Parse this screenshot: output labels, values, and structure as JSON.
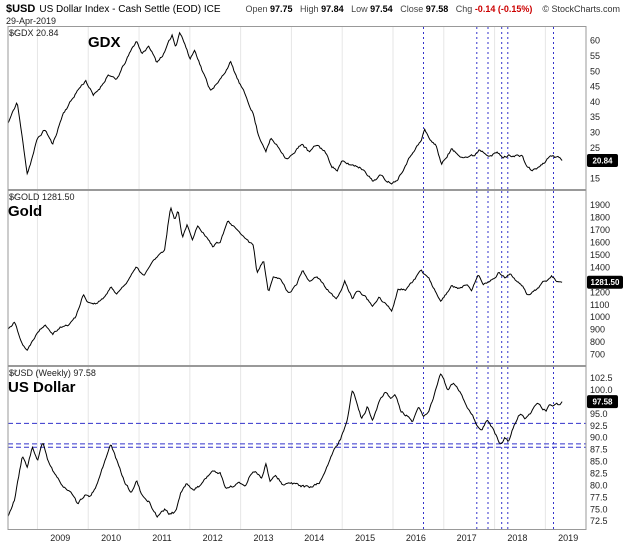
{
  "header": {
    "symbol": "$USD",
    "title": "US Dollar Index - Cash Settle (EOD) ICE",
    "date": "29-Apr-2019",
    "ohlc": [
      {
        "label": "Open",
        "value": "97.75"
      },
      {
        "label": "High",
        "value": "97.84"
      },
      {
        "label": "Low",
        "value": "97.54"
      },
      {
        "label": "Close",
        "value": "97.58"
      }
    ],
    "chg_label": "Chg",
    "chg_value": "-0.14 (-0.15%)",
    "copyright": "© StockCharts.com"
  },
  "chart_data": {
    "type": "line",
    "x_axis": {
      "years": [
        2009,
        2010,
        2011,
        2012,
        2013,
        2014,
        2015,
        2016,
        2017,
        2018,
        2019
      ],
      "domain": [
        2008.42,
        2019.8
      ]
    },
    "annotations": {
      "vlines": [
        2016.6,
        2017.65,
        2017.87,
        2018.14,
        2018.26,
        2019.16
      ],
      "vline_color": "#3333cc",
      "hline_color": "#3333cc"
    },
    "panels": [
      {
        "id": "GDX",
        "legend": "$GDX 20.84",
        "big_label": "GDX",
        "last_label": "20.84",
        "last_value": 20.84,
        "ylim": [
          12.5,
          63.5
        ],
        "ticks": [
          "60",
          "55",
          "50",
          "45",
          "40",
          "35",
          "30",
          "25",
          "20",
          "15"
        ],
        "series": [
          [
            2008.42,
            33
          ],
          [
            2008.6,
            40
          ],
          [
            2008.8,
            16.5
          ],
          [
            2008.9,
            22
          ],
          [
            2009.0,
            28
          ],
          [
            2009.15,
            31
          ],
          [
            2009.3,
            26
          ],
          [
            2009.5,
            36
          ],
          [
            2009.65,
            40
          ],
          [
            2009.8,
            44
          ],
          [
            2009.95,
            47
          ],
          [
            2010.1,
            42
          ],
          [
            2010.25,
            45
          ],
          [
            2010.4,
            49
          ],
          [
            2010.55,
            47
          ],
          [
            2010.7,
            52
          ],
          [
            2010.85,
            57
          ],
          [
            2010.95,
            60
          ],
          [
            2011.05,
            56
          ],
          [
            2011.2,
            58
          ],
          [
            2011.35,
            53
          ],
          [
            2011.5,
            56
          ],
          [
            2011.65,
            62
          ],
          [
            2011.72,
            58
          ],
          [
            2011.8,
            63
          ],
          [
            2011.9,
            59
          ],
          [
            2012.0,
            54
          ],
          [
            2012.1,
            57
          ],
          [
            2012.25,
            50
          ],
          [
            2012.4,
            44
          ],
          [
            2012.55,
            46
          ],
          [
            2012.7,
            50
          ],
          [
            2012.8,
            53
          ],
          [
            2012.95,
            47
          ],
          [
            2013.1,
            42
          ],
          [
            2013.25,
            36
          ],
          [
            2013.35,
            29
          ],
          [
            2013.5,
            24
          ],
          [
            2013.6,
            28
          ],
          [
            2013.75,
            25
          ],
          [
            2013.9,
            21.5
          ],
          [
            2014.05,
            23
          ],
          [
            2014.2,
            26.5
          ],
          [
            2014.35,
            23.5
          ],
          [
            2014.5,
            26
          ],
          [
            2014.65,
            24
          ],
          [
            2014.8,
            19
          ],
          [
            2014.9,
            17.5
          ],
          [
            2015.0,
            20.5
          ],
          [
            2015.15,
            19.5
          ],
          [
            2015.3,
            19
          ],
          [
            2015.45,
            17.5
          ],
          [
            2015.6,
            14
          ],
          [
            2015.75,
            16
          ],
          [
            2015.9,
            14
          ],
          [
            2016.0,
            13.5
          ],
          [
            2016.1,
            15
          ],
          [
            2016.25,
            19.5
          ],
          [
            2016.4,
            24
          ],
          [
            2016.55,
            27
          ],
          [
            2016.62,
            31
          ],
          [
            2016.75,
            27
          ],
          [
            2016.85,
            26
          ],
          [
            2016.95,
            19.5
          ],
          [
            2017.05,
            22
          ],
          [
            2017.15,
            24.5
          ],
          [
            2017.3,
            22.5
          ],
          [
            2017.45,
            22
          ],
          [
            2017.6,
            22.5
          ],
          [
            2017.7,
            24.5
          ],
          [
            2017.85,
            23
          ],
          [
            2017.95,
            22.5
          ],
          [
            2018.05,
            23.5
          ],
          [
            2018.15,
            21.8
          ],
          [
            2018.3,
            22.5
          ],
          [
            2018.45,
            22.5
          ],
          [
            2018.55,
            22
          ],
          [
            2018.65,
            18.5
          ],
          [
            2018.75,
            17.6
          ],
          [
            2018.85,
            18.5
          ],
          [
            2018.95,
            19.5
          ],
          [
            2019.05,
            21.5
          ],
          [
            2019.1,
            22.8
          ],
          [
            2019.18,
            21.8
          ],
          [
            2019.25,
            22.3
          ],
          [
            2019.33,
            20.84
          ]
        ]
      },
      {
        "id": "GOLD",
        "legend": "$GOLD 1281.50",
        "big_label": "Gold",
        "last_label": "1281.50",
        "last_value": 1281.5,
        "ylim": [
          640,
          1990
        ],
        "ticks": [
          "1900",
          "1800",
          "1700",
          "1600",
          "1500",
          "1400",
          "1300",
          "1200",
          "1100",
          "1000",
          "900",
          "800",
          "700"
        ],
        "series": [
          [
            2008.42,
            905
          ],
          [
            2008.55,
            960
          ],
          [
            2008.7,
            790
          ],
          [
            2008.8,
            730
          ],
          [
            2008.9,
            810
          ],
          [
            2009.0,
            880
          ],
          [
            2009.15,
            945
          ],
          [
            2009.3,
            870
          ],
          [
            2009.45,
            920
          ],
          [
            2009.6,
            935
          ],
          [
            2009.75,
            1000
          ],
          [
            2009.9,
            1180
          ],
          [
            2010.0,
            1120
          ],
          [
            2010.15,
            1110
          ],
          [
            2010.3,
            1150
          ],
          [
            2010.45,
            1240
          ],
          [
            2010.55,
            1190
          ],
          [
            2010.7,
            1250
          ],
          [
            2010.85,
            1340
          ],
          [
            2010.95,
            1400
          ],
          [
            2011.1,
            1330
          ],
          [
            2011.25,
            1440
          ],
          [
            2011.4,
            1500
          ],
          [
            2011.5,
            1530
          ],
          [
            2011.62,
            1890
          ],
          [
            2011.7,
            1780
          ],
          [
            2011.77,
            1870
          ],
          [
            2011.85,
            1640
          ],
          [
            2011.95,
            1750
          ],
          [
            2012.05,
            1620
          ],
          [
            2012.15,
            1740
          ],
          [
            2012.3,
            1660
          ],
          [
            2012.45,
            1570
          ],
          [
            2012.6,
            1610
          ],
          [
            2012.75,
            1770
          ],
          [
            2012.9,
            1710
          ],
          [
            2013.0,
            1670
          ],
          [
            2013.15,
            1610
          ],
          [
            2013.25,
            1580
          ],
          [
            2013.32,
            1360
          ],
          [
            2013.45,
            1460
          ],
          [
            2013.55,
            1200
          ],
          [
            2013.65,
            1330
          ],
          [
            2013.8,
            1300
          ],
          [
            2013.95,
            1190
          ],
          [
            2014.1,
            1260
          ],
          [
            2014.22,
            1380
          ],
          [
            2014.35,
            1290
          ],
          [
            2014.5,
            1330
          ],
          [
            2014.65,
            1250
          ],
          [
            2014.8,
            1180
          ],
          [
            2014.88,
            1140
          ],
          [
            2014.98,
            1210
          ],
          [
            2015.05,
            1290
          ],
          [
            2015.2,
            1150
          ],
          [
            2015.3,
            1210
          ],
          [
            2015.45,
            1170
          ],
          [
            2015.6,
            1080
          ],
          [
            2015.72,
            1160
          ],
          [
            2015.85,
            1110
          ],
          [
            2015.98,
            1050
          ],
          [
            2016.1,
            1230
          ],
          [
            2016.25,
            1220
          ],
          [
            2016.4,
            1290
          ],
          [
            2016.55,
            1370
          ],
          [
            2016.7,
            1320
          ],
          [
            2016.82,
            1220
          ],
          [
            2016.95,
            1130
          ],
          [
            2017.05,
            1190
          ],
          [
            2017.15,
            1250
          ],
          [
            2017.3,
            1230
          ],
          [
            2017.45,
            1260
          ],
          [
            2017.55,
            1210
          ],
          [
            2017.68,
            1350
          ],
          [
            2017.78,
            1270
          ],
          [
            2017.9,
            1290
          ],
          [
            2018.0,
            1310
          ],
          [
            2018.08,
            1360
          ],
          [
            2018.2,
            1320
          ],
          [
            2018.3,
            1350
          ],
          [
            2018.42,
            1290
          ],
          [
            2018.55,
            1250
          ],
          [
            2018.65,
            1180
          ],
          [
            2018.75,
            1200
          ],
          [
            2018.85,
            1230
          ],
          [
            2018.95,
            1280
          ],
          [
            2019.05,
            1290
          ],
          [
            2019.12,
            1330
          ],
          [
            2019.2,
            1300
          ],
          [
            2019.28,
            1285
          ],
          [
            2019.33,
            1281.5
          ]
        ]
      },
      {
        "id": "USD",
        "legend": "$USD (Weekly) 97.58",
        "big_label": "US Dollar",
        "last_label": "97.58",
        "last_value": 97.58,
        "ylim": [
          71.5,
          104.2
        ],
        "ticks": [
          "102.5",
          "100.0",
          "97.5",
          "95.0",
          "92.5",
          "90.0",
          "87.5",
          "85.0",
          "82.5",
          "80.0",
          "77.5",
          "75.0",
          "72.5"
        ],
        "hlines": [
          93.0,
          88.7,
          88.0
        ],
        "series": [
          [
            2008.42,
            73.5
          ],
          [
            2008.55,
            77
          ],
          [
            2008.7,
            86
          ],
          [
            2008.8,
            84
          ],
          [
            2008.9,
            88
          ],
          [
            2009.0,
            85
          ],
          [
            2009.1,
            89
          ],
          [
            2009.2,
            85.5
          ],
          [
            2009.35,
            82
          ],
          [
            2009.5,
            80
          ],
          [
            2009.65,
            78.5
          ],
          [
            2009.8,
            76
          ],
          [
            2009.92,
            78
          ],
          [
            2010.05,
            77.5
          ],
          [
            2010.2,
            81
          ],
          [
            2010.35,
            86
          ],
          [
            2010.45,
            88.5
          ],
          [
            2010.6,
            84
          ],
          [
            2010.75,
            80
          ],
          [
            2010.85,
            78.5
          ],
          [
            2010.95,
            81
          ],
          [
            2011.05,
            78
          ],
          [
            2011.2,
            76.5
          ],
          [
            2011.35,
            73.5
          ],
          [
            2011.5,
            75
          ],
          [
            2011.6,
            74
          ],
          [
            2011.72,
            74.5
          ],
          [
            2011.82,
            78.5
          ],
          [
            2011.95,
            80.5
          ],
          [
            2012.05,
            79
          ],
          [
            2012.2,
            80
          ],
          [
            2012.35,
            82
          ],
          [
            2012.45,
            83
          ],
          [
            2012.6,
            82.5
          ],
          [
            2012.7,
            79.5
          ],
          [
            2012.85,
            79.8
          ],
          [
            2012.95,
            80.5
          ],
          [
            2013.1,
            80
          ],
          [
            2013.2,
            82.5
          ],
          [
            2013.3,
            83
          ],
          [
            2013.42,
            81.5
          ],
          [
            2013.5,
            84.5
          ],
          [
            2013.58,
            80.8
          ],
          [
            2013.7,
            82
          ],
          [
            2013.85,
            80
          ],
          [
            2013.95,
            80.5
          ],
          [
            2014.1,
            80.2
          ],
          [
            2014.25,
            79.8
          ],
          [
            2014.4,
            79.5
          ],
          [
            2014.55,
            80.5
          ],
          [
            2014.7,
            84
          ],
          [
            2014.85,
            87.5
          ],
          [
            2014.98,
            90
          ],
          [
            2015.1,
            94
          ],
          [
            2015.2,
            100
          ],
          [
            2015.3,
            97
          ],
          [
            2015.38,
            94
          ],
          [
            2015.5,
            96.5
          ],
          [
            2015.6,
            93.5
          ],
          [
            2015.72,
            97.5
          ],
          [
            2015.85,
            99.5
          ],
          [
            2015.95,
            98.5
          ],
          [
            2016.05,
            99
          ],
          [
            2016.15,
            95.5
          ],
          [
            2016.28,
            94.5
          ],
          [
            2016.38,
            93
          ],
          [
            2016.5,
            96.5
          ],
          [
            2016.6,
            94.3
          ],
          [
            2016.7,
            95.5
          ],
          [
            2016.8,
            98.5
          ],
          [
            2016.93,
            103.2
          ],
          [
            2017.0,
            102.2
          ],
          [
            2017.08,
            99.8
          ],
          [
            2017.18,
            101.5
          ],
          [
            2017.3,
            100
          ],
          [
            2017.42,
            97
          ],
          [
            2017.55,
            95
          ],
          [
            2017.65,
            92.8
          ],
          [
            2017.75,
            91.5
          ],
          [
            2017.85,
            93.8
          ],
          [
            2017.95,
            92
          ],
          [
            2018.05,
            90
          ],
          [
            2018.12,
            88.6
          ],
          [
            2018.2,
            90
          ],
          [
            2018.28,
            89.2
          ],
          [
            2018.38,
            92.5
          ],
          [
            2018.5,
            95
          ],
          [
            2018.6,
            94.2
          ],
          [
            2018.7,
            95
          ],
          [
            2018.8,
            96.5
          ],
          [
            2018.88,
            97.3
          ],
          [
            2018.95,
            96
          ],
          [
            2019.02,
            95.7
          ],
          [
            2019.08,
            96.8
          ],
          [
            2019.15,
            96.2
          ],
          [
            2019.22,
            97.4
          ],
          [
            2019.28,
            96.8
          ],
          [
            2019.33,
            97.58
          ]
        ]
      }
    ]
  }
}
